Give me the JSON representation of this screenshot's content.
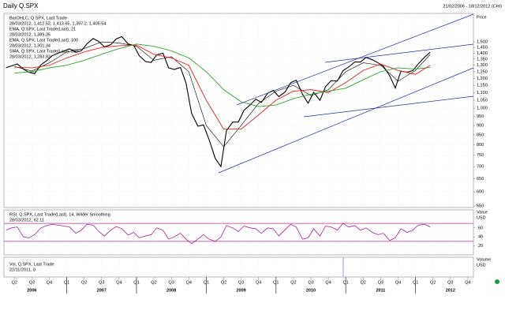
{
  "title": "Daily Q.SPX",
  "date_range": "21/02/2006 - 18/12/2012 (CHI)",
  "chart_data": [
    {
      "type": "line",
      "log_scale": true,
      "grid": true,
      "axis_label": "Price",
      "ylim": [
        545,
        1785
      ],
      "yticks": [
        550,
        600,
        650,
        700,
        750,
        800,
        850,
        900,
        950,
        {
          "value": 1000,
          "label": "1,000"
        },
        {
          "value": 1050,
          "label": "1,050"
        },
        {
          "value": 1100,
          "label": "1,100"
        },
        {
          "value": 1150,
          "label": "1,150"
        },
        {
          "value": 1200,
          "label": "1,200"
        },
        {
          "value": 1250,
          "label": "1,250"
        },
        {
          "value": 1300,
          "label": "1,300"
        },
        {
          "value": 1350,
          "label": "1,350"
        },
        {
          "value": 1400,
          "label": "1,400"
        },
        {
          "value": 1450,
          "label": "1,450"
        },
        {
          "value": 1500,
          "label": "1,500"
        }
      ],
      "xlim": [
        2006.1,
        2012.83
      ],
      "xticks": [
        {
          "value": 2006.25,
          "label": "Q2"
        },
        {
          "value": 2006.5,
          "label": "Q3"
        },
        {
          "value": 2006.75,
          "label": "Q4"
        },
        {
          "value": 2007,
          "label": "Q1"
        },
        {
          "value": 2007.25,
          "label": "Q2"
        },
        {
          "value": 2007.5,
          "label": "Q3"
        },
        {
          "value": 2007.75,
          "label": "Q4"
        },
        {
          "value": 2008,
          "label": "Q1"
        },
        {
          "value": 2008.25,
          "label": "Q2"
        },
        {
          "value": 2008.5,
          "label": "Q3"
        },
        {
          "value": 2008.75,
          "label": "Q4"
        },
        {
          "value": 2009,
          "label": "Q1"
        },
        {
          "value": 2009.25,
          "label": "Q2"
        },
        {
          "value": 2009.5,
          "label": "Q3"
        },
        {
          "value": 2009.75,
          "label": "Q4"
        },
        {
          "value": 2010,
          "label": "Q1"
        },
        {
          "value": 2010.25,
          "label": "Q2"
        },
        {
          "value": 2010.5,
          "label": "Q3"
        },
        {
          "value": 2010.75,
          "label": "Q4"
        },
        {
          "value": 2011,
          "label": "Q1"
        },
        {
          "value": 2011.25,
          "label": "Q2"
        },
        {
          "value": 2011.5,
          "label": "Q3"
        },
        {
          "value": 2011.75,
          "label": "Q4"
        },
        {
          "value": 2012,
          "label": "Q1"
        },
        {
          "value": 2012.25,
          "label": "Q2"
        },
        {
          "value": 2012.5,
          "label": "Q3"
        },
        {
          "value": 2012.75,
          "label": "Q4"
        }
      ],
      "year_ticks": [
        2007,
        2008,
        2009,
        2010,
        2011,
        2012
      ],
      "year_labels": [
        {
          "value": 2006.5,
          "label": "2006"
        },
        {
          "value": 2007.5,
          "label": "2007"
        },
        {
          "value": 2008.5,
          "label": "2008"
        },
        {
          "value": 2009.5,
          "label": "2009"
        },
        {
          "value": 2010.5,
          "label": "2010"
        },
        {
          "value": 2011.5,
          "label": "2011"
        },
        {
          "value": 2012.5,
          "label": "2012"
        }
      ],
      "series": [
        {
          "name": "BarOHLC, Q.SPX, Last Trade",
          "legend_value": "28/03/2012, 1,412.52, 1,413.65, 1,397.2, 1,405.54",
          "color": "#000000",
          "width": 1.1,
          "x": [
            2006.13,
            2006.21,
            2006.29,
            2006.38,
            2006.46,
            2006.54,
            2006.63,
            2006.71,
            2006.79,
            2006.88,
            2006.96,
            2007.04,
            2007.13,
            2007.21,
            2007.29,
            2007.38,
            2007.46,
            2007.54,
            2007.63,
            2007.71,
            2007.79,
            2007.88,
            2007.96,
            2008.04,
            2008.13,
            2008.21,
            2008.29,
            2008.38,
            2008.46,
            2008.54,
            2008.63,
            2008.71,
            2008.79,
            2008.88,
            2008.96,
            2009.04,
            2009.13,
            2009.21,
            2009.29,
            2009.38,
            2009.46,
            2009.54,
            2009.63,
            2009.71,
            2009.79,
            2009.88,
            2009.96,
            2010.04,
            2010.13,
            2010.21,
            2010.29,
            2010.38,
            2010.46,
            2010.54,
            2010.63,
            2010.71,
            2010.79,
            2010.88,
            2010.96,
            2011.04,
            2011.13,
            2011.21,
            2011.29,
            2011.38,
            2011.46,
            2011.54,
            2011.63,
            2011.71,
            2011.79,
            2011.88,
            2011.96,
            2012.04,
            2012.13,
            2012.21
          ],
          "values": [
            1281,
            1295,
            1311,
            1270,
            1245,
            1236,
            1304,
            1336,
            1378,
            1401,
            1418,
            1438,
            1407,
            1421,
            1482,
            1531,
            1503,
            1455,
            1474,
            1527,
            1549,
            1481,
            1468,
            1378,
            1330,
            1323,
            1386,
            1400,
            1280,
            1267,
            1283,
            1166,
            969,
            896,
            903,
            826,
            735,
            700,
            873,
            919,
            919,
            987,
            1021,
            1057,
            1036,
            1096,
            1115,
            1074,
            1104,
            1169,
            1187,
            1089,
            1031,
            1102,
            1049,
            1141,
            1183,
            1181,
            1258,
            1286,
            1327,
            1326,
            1364,
            1345,
            1321,
            1292,
            1219,
            1131,
            1253,
            1247,
            1258,
            1312,
            1366,
            1408
          ]
        },
        {
          "name": "EMA, Q.SPX, Last Trade(Last), 21",
          "legend_value": "28/03/2012, 1,389.35",
          "color": "#000000",
          "width": 0.6,
          "x": [
            2006.25,
            2006.5,
            2006.75,
            2007,
            2007.25,
            2007.5,
            2007.75,
            2008,
            2008.25,
            2008.5,
            2008.75,
            2009,
            2009.25,
            2009.5,
            2009.75,
            2010,
            2010.25,
            2010.5,
            2010.75,
            2011,
            2011.25,
            2011.5,
            2011.75,
            2012,
            2012.21
          ],
          "values": [
            1290,
            1255,
            1320,
            1410,
            1440,
            1500,
            1490,
            1460,
            1340,
            1370,
            1250,
            900,
            790,
            900,
            1030,
            1110,
            1150,
            1080,
            1120,
            1250,
            1320,
            1300,
            1180,
            1260,
            1389
          ]
        },
        {
          "name": "EMA, Q.SPX, Last Trade(Last), 100",
          "legend_value": "28/03/2012, 1,301.34",
          "color": "#e02020",
          "width": 0.9,
          "x": [
            2006.25,
            2006.5,
            2006.75,
            2007,
            2007.25,
            2007.5,
            2007.75,
            2008,
            2008.25,
            2008.5,
            2008.75,
            2009,
            2009.25,
            2009.5,
            2009.75,
            2010,
            2010.25,
            2010.5,
            2010.75,
            2011,
            2011.25,
            2011.5,
            2011.75,
            2012,
            2012.21
          ],
          "values": [
            1285,
            1280,
            1300,
            1360,
            1410,
            1450,
            1465,
            1470,
            1390,
            1360,
            1300,
            1050,
            880,
            880,
            960,
            1050,
            1110,
            1120,
            1100,
            1170,
            1260,
            1310,
            1260,
            1230,
            1301
          ]
        },
        {
          "name": "SMA, Q.SPX, Last Trade(Last), 250",
          "legend_value": "28/03/2012, 1,283.83",
          "color": "#30a030",
          "width": 0.9,
          "x": [
            2006.25,
            2006.5,
            2006.75,
            2007,
            2007.25,
            2007.5,
            2007.75,
            2008,
            2008.25,
            2008.5,
            2008.75,
            2009,
            2009.25,
            2009.5,
            2009.75,
            2010,
            2010.25,
            2010.5,
            2010.75,
            2011,
            2011.25,
            2011.5,
            2011.75,
            2012,
            2012.21
          ],
          "values": [
            1240,
            1250,
            1280,
            1300,
            1340,
            1390,
            1440,
            1480,
            1460,
            1420,
            1360,
            1250,
            1120,
            1040,
            1010,
            1020,
            1060,
            1090,
            1110,
            1130,
            1190,
            1250,
            1280,
            1270,
            1284
          ]
        }
      ]
    },
    {
      "type": "line",
      "axis_label": "Value",
      "unit": "USD",
      "ylim": [
        0,
        100
      ],
      "yticks": [
        20,
        40,
        60
      ],
      "levels": [
        30,
        70
      ],
      "level_color": "#b03090",
      "series": [
        {
          "name": "RSI, Q.SPX, Last Trade(Last), 14, Wilder Smoothing",
          "legend_value": "28/03/2012, 62.11",
          "color": "#a02090",
          "width": 0.8,
          "x": [
            2006.13,
            2006.21,
            2006.29,
            2006.38,
            2006.46,
            2006.54,
            2006.63,
            2006.71,
            2006.79,
            2006.88,
            2006.96,
            2007.04,
            2007.13,
            2007.21,
            2007.29,
            2007.38,
            2007.46,
            2007.54,
            2007.63,
            2007.71,
            2007.79,
            2007.88,
            2007.96,
            2008.04,
            2008.13,
            2008.21,
            2008.29,
            2008.38,
            2008.46,
            2008.54,
            2008.63,
            2008.71,
            2008.79,
            2008.88,
            2008.96,
            2009.04,
            2009.13,
            2009.21,
            2009.29,
            2009.38,
            2009.46,
            2009.54,
            2009.63,
            2009.71,
            2009.79,
            2009.88,
            2009.96,
            2010.04,
            2010.13,
            2010.21,
            2010.29,
            2010.38,
            2010.46,
            2010.54,
            2010.63,
            2010.71,
            2010.79,
            2010.88,
            2010.96,
            2011.04,
            2011.13,
            2011.21,
            2011.29,
            2011.38,
            2011.46,
            2011.54,
            2011.63,
            2011.71,
            2011.79,
            2011.88,
            2011.96,
            2012.04,
            2012.13,
            2012.21
          ],
          "values": [
            55,
            60,
            62,
            40,
            38,
            45,
            60,
            65,
            68,
            66,
            64,
            62,
            48,
            55,
            68,
            66,
            52,
            42,
            55,
            63,
            58,
            44,
            50,
            38,
            42,
            45,
            60,
            55,
            35,
            40,
            48,
            35,
            25,
            35,
            45,
            35,
            30,
            40,
            65,
            60,
            52,
            64,
            60,
            58,
            48,
            60,
            58,
            42,
            56,
            68,
            62,
            35,
            38,
            58,
            42,
            64,
            62,
            55,
            70,
            62,
            65,
            55,
            60,
            50,
            45,
            48,
            32,
            38,
            58,
            50,
            55,
            66,
            68,
            62
          ]
        }
      ]
    },
    {
      "type": "bar",
      "axis_label": "Volume",
      "unit": "USD",
      "series": [
        {
          "name": "Vol, Q.SPX, Last Trade",
          "legend_value": "22/11/2011, 0",
          "color": "#3060c0"
        }
      ]
    }
  ]
}
